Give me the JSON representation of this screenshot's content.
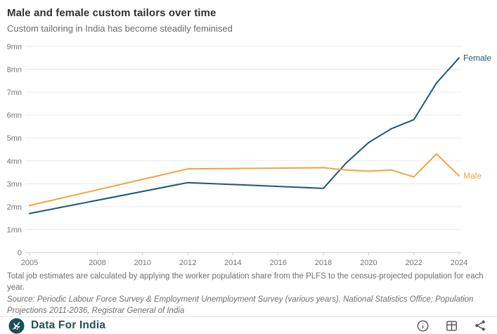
{
  "header": {
    "title": "Male and female custom tailors over time",
    "subtitle": "Custom tailoring in India has become steadily feminised"
  },
  "chart_data": {
    "type": "line",
    "x": [
      2005,
      2012,
      2018,
      2019,
      2020,
      2021,
      2022,
      2023,
      2024
    ],
    "series": [
      {
        "name": "Female",
        "color": "#20586f",
        "values": [
          1.7,
          3.05,
          2.8,
          3.9,
          4.8,
          5.4,
          5.8,
          7.4,
          8.5
        ]
      },
      {
        "name": "Male",
        "color": "#f3a33c",
        "values": [
          2.05,
          3.65,
          3.7,
          3.6,
          3.55,
          3.6,
          3.3,
          4.3,
          3.35
        ]
      }
    ],
    "x_ticks": [
      "2005",
      "2008",
      "2010",
      "2012",
      "2014",
      "2016",
      "2018",
      "2020",
      "2022",
      "2024"
    ],
    "y_ticks": [
      "0",
      "1mn",
      "2mn",
      "3mn",
      "4mn",
      "5mn",
      "6mn",
      "7mn",
      "8mn",
      "9mn"
    ],
    "xlim": [
      2005,
      2024
    ],
    "ylim": [
      0,
      9
    ],
    "unit": "mn",
    "grid": "horizontal",
    "legend_position": "end-of-line labels",
    "title": "Male and female custom tailors over time",
    "xlabel": "",
    "ylabel": ""
  },
  "footer": {
    "note": "Total job estimates are calculated by applying the worker population share from the PLFS to the census-projected population for each year.",
    "source": "Source: Periodic Labour Force Survey & Employment Unemployment Survey (various years), National Statistics Office; Population Projections 2011-2036, Registrar General of India"
  },
  "brand": {
    "name": "Data For India",
    "icons": [
      "info-icon",
      "table-icon",
      "share-icon"
    ]
  },
  "colors": {
    "female_line": "#20586f",
    "male_line": "#f3a33c",
    "gridline": "#eaeaea",
    "axis": "#cdd0d4",
    "tick_text": "#767676",
    "logo_circle": "#1f4d5c",
    "brand_text": "#2b4d5a",
    "icon_gray": "#4f5358"
  }
}
